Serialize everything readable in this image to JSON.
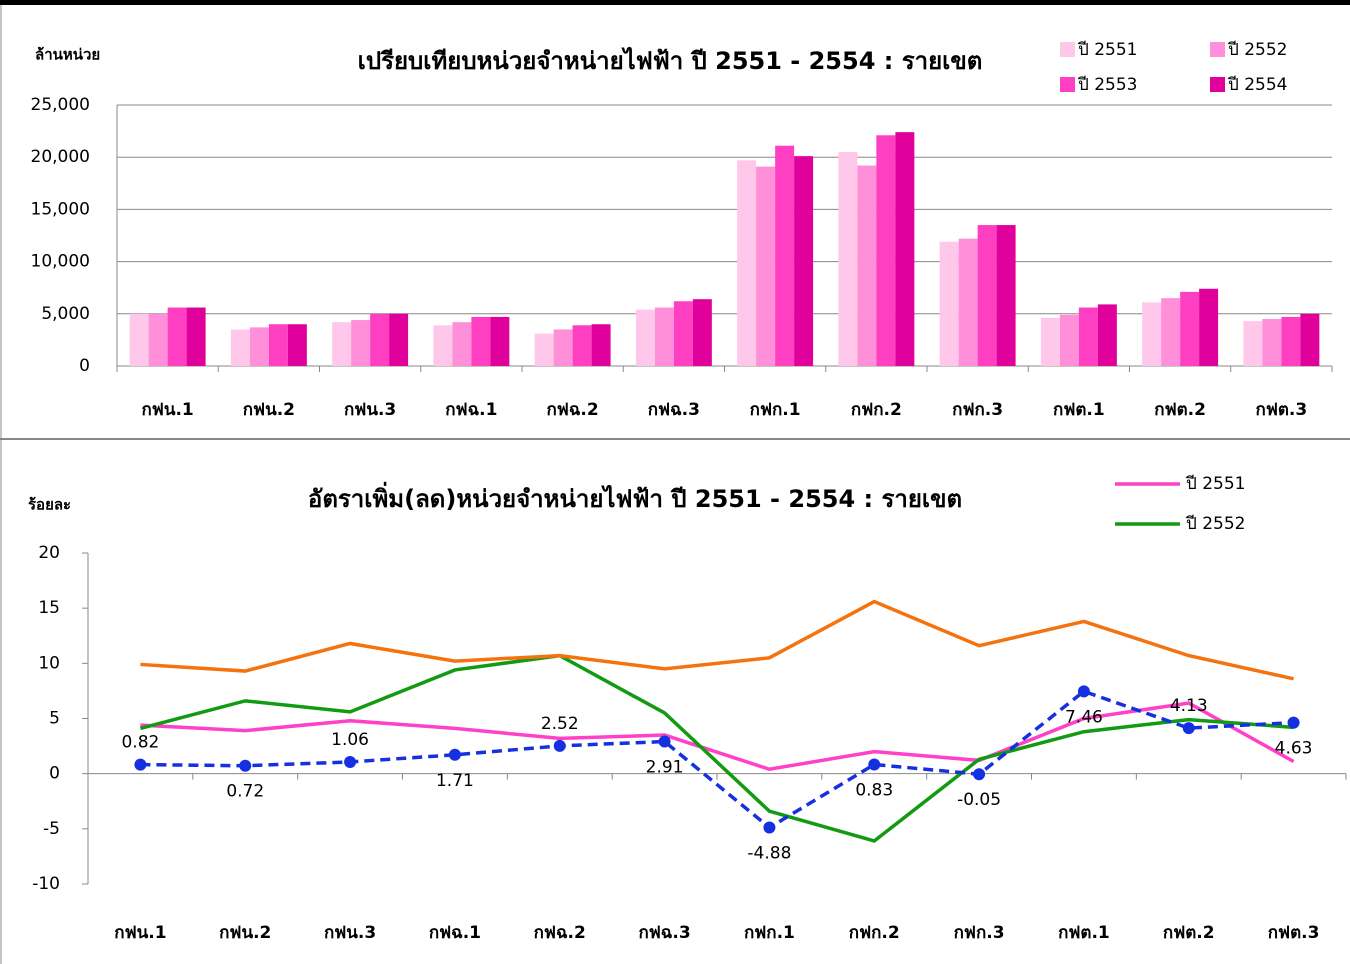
{
  "chart_data": [
    {
      "type": "bar",
      "title": "เปรียบเทียบหน่วยจำหน่ายไฟฟ้า ปี 2551 - 2554 : รายเขต",
      "ylabel": "ล้านหน่วย",
      "categories": [
        "กฟน.1",
        "กฟน.2",
        "กฟน.3",
        "กฟฉ.1",
        "กฟฉ.2",
        "กฟฉ.3",
        "กฟก.1",
        "กฟก.2",
        "กฟก.3",
        "กฟต.1",
        "กฟต.2",
        "กฟต.3"
      ],
      "series": [
        {
          "name": "ปี 2551",
          "color": "#ffc8ea",
          "values": [
            5000,
            3500,
            4200,
            3900,
            3100,
            5400,
            19700,
            20500,
            11900,
            4600,
            6100,
            4300
          ]
        },
        {
          "name": "ปี 2552",
          "color": "#ff8fd8",
          "values": [
            5000,
            3700,
            4400,
            4200,
            3500,
            5600,
            19100,
            19200,
            12200,
            4900,
            6500,
            4500
          ]
        },
        {
          "name": "ปี 2553",
          "color": "#ff3fc2",
          "values": [
            5600,
            4000,
            5000,
            4700,
            3900,
            6200,
            21100,
            22100,
            13500,
            5600,
            7100,
            4700
          ]
        },
        {
          "name": "ปี 2554",
          "color": "#e0009c",
          "values": [
            5600,
            4000,
            5000,
            4700,
            4000,
            6400,
            20100,
            22400,
            13500,
            5900,
            7400,
            5000
          ]
        }
      ],
      "ylim": [
        0,
        25000
      ],
      "yticks": [
        0,
        {
          "value": 5000,
          "label": "5,000"
        },
        {
          "value": 10000,
          "label": "10,000"
        },
        {
          "value": 15000,
          "label": "15,000"
        },
        {
          "value": 20000,
          "label": "20,000"
        },
        {
          "value": 25000,
          "label": "25,000"
        }
      ],
      "grid": true
    },
    {
      "type": "line",
      "title": "อัตราเพิ่ม(ลด)หน่วยจำหน่ายไฟฟ้า ปี 2551 - 2554 : รายเขต",
      "ylabel": "ร้อยละ",
      "categories": [
        "กฟน.1",
        "กฟน.2",
        "กฟน.3",
        "กฟฉ.1",
        "กฟฉ.2",
        "กฟฉ.3",
        "กฟก.1",
        "กฟก.2",
        "กฟก.3",
        "กฟต.1",
        "กฟต.2",
        "กฟต.3"
      ],
      "series": [
        {
          "name": "ปี 2551",
          "color": "#ff40c8",
          "values": [
            4.4,
            3.9,
            4.8,
            4.1,
            3.2,
            3.5,
            0.4,
            2.0,
            1.2,
            5.0,
            6.4,
            1.1
          ]
        },
        {
          "name": "ปี 2552",
          "color": "#129a12",
          "values": [
            4.1,
            6.6,
            5.6,
            9.4,
            10.7,
            5.5,
            -3.4,
            -6.1,
            1.3,
            3.8,
            4.9,
            4.2
          ]
        },
        {
          "color": "#f4730f",
          "values": [
            9.9,
            9.3,
            11.8,
            10.2,
            10.7,
            9.5,
            10.5,
            15.6,
            11.6,
            13.8,
            10.7,
            8.6
          ]
        },
        {
          "color": "#1530e0",
          "style": "dashed",
          "marker": "circle",
          "label_color": "#1530e0",
          "negative_label_color": "#ff0000",
          "values": [
            0.82,
            0.72,
            1.06,
            1.71,
            2.52,
            2.91,
            -4.88,
            0.83,
            -0.05,
            7.46,
            4.13,
            4.63
          ]
        }
      ],
      "ylim": [
        -10,
        20
      ],
      "yticks": [
        -10,
        -5,
        0,
        5,
        10,
        15,
        20
      ],
      "grid": false
    }
  ]
}
